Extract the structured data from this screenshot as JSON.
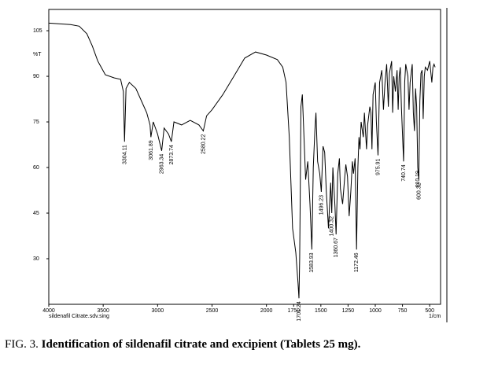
{
  "chart_data": {
    "type": "line",
    "caption_prefix": "FIG. 3.",
    "caption": "Identification of sildenafil citrate and excipient (Tablets 25 mg).",
    "sample_label": "sildenafil Citrate.sdv.sing",
    "xlabel": "1/cm",
    "ylabel": "%T",
    "xlim": [
      4000,
      400
    ],
    "ylim": [
      15,
      112
    ],
    "xticks": [
      4000,
      3500,
      3000,
      2500,
      2000,
      1750,
      1500,
      1250,
      1000,
      750,
      500
    ],
    "yticks": [
      30,
      45,
      60,
      75,
      90,
      105
    ],
    "grid": false,
    "series": [
      {
        "color": "#000000",
        "x": [
          4000,
          3800,
          3720,
          3650,
          3600,
          3550,
          3480,
          3400,
          3340,
          3315,
          3304,
          3290,
          3260,
          3200,
          3150,
          3100,
          3070,
          3062,
          3040,
          3000,
          2963,
          2940,
          2900,
          2874,
          2850,
          2780,
          2700,
          2620,
          2580,
          2550,
          2500,
          2400,
          2300,
          2200,
          2100,
          2000,
          1900,
          1850,
          1820,
          1790,
          1760,
          1730,
          1710,
          1701,
          1695,
          1690,
          1683,
          1670,
          1655,
          1640,
          1620,
          1600,
          1583,
          1570,
          1555,
          1545,
          1530,
          1510,
          1496,
          1480,
          1465,
          1450,
          1430,
          1410,
          1400,
          1390,
          1370,
          1360,
          1345,
          1330,
          1320,
          1300,
          1285,
          1270,
          1255,
          1240,
          1225,
          1210,
          1200,
          1185,
          1172,
          1160,
          1150,
          1140,
          1130,
          1110,
          1100,
          1080,
          1070,
          1050,
          1040,
          1030,
          1020,
          1000,
          990,
          975,
          960,
          940,
          925,
          910,
          895,
          880,
          870,
          850,
          840,
          830,
          815,
          800,
          790,
          780,
          770,
          760,
          740,
          730,
          720,
          700,
          690,
          680,
          660,
          650,
          640,
          630,
          620,
          610,
          600,
          590,
          580,
          570,
          560,
          550,
          540,
          520,
          500,
          480,
          470,
          460,
          450
        ],
        "values": [
          107.5,
          107,
          106.5,
          104,
          100,
          95,
          90.5,
          89.5,
          89,
          85,
          68.5,
          86,
          88,
          86,
          82,
          78,
          74,
          70,
          75,
          71,
          65.5,
          73,
          71,
          68.5,
          75,
          74,
          75.5,
          74,
          72,
          77,
          79,
          84,
          90,
          96,
          98,
          97,
          95.5,
          93,
          88,
          70,
          40,
          32,
          22,
          17,
          30,
          50,
          80,
          84,
          70,
          56,
          62,
          48,
          33,
          60,
          72,
          78,
          62,
          58,
          52,
          67,
          65,
          52,
          40,
          55,
          45,
          60,
          47,
          38,
          58,
          63,
          53,
          48,
          55,
          61,
          57,
          44,
          52,
          62,
          58,
          63,
          33,
          60,
          70,
          66,
          75,
          70,
          78,
          66,
          74,
          80,
          78,
          66,
          84,
          88,
          75,
          64,
          88,
          92,
          79,
          88,
          94,
          80,
          91,
          95,
          78,
          90,
          85,
          92,
          79,
          90,
          93,
          80,
          62,
          88,
          94,
          90,
          79,
          88,
          94,
          78,
          72,
          86,
          80,
          60,
          56,
          82,
          91,
          92,
          76,
          90,
          93,
          92,
          95,
          88,
          93,
          94,
          93
        ]
      }
    ],
    "peaks": [
      {
        "x": 3304.11,
        "y": 68.5
      },
      {
        "x": 3061.89,
        "y": 70
      },
      {
        "x": 2963.34,
        "y": 65.5
      },
      {
        "x": 2873.74,
        "y": 68.5
      },
      {
        "x": 2580.22,
        "y": 72
      },
      {
        "x": 1701.24,
        "y": 17
      },
      {
        "x": 1583.93,
        "y": 33
      },
      {
        "x": 1496.23,
        "y": 52
      },
      {
        "x": 1400.32,
        "y": 45
      },
      {
        "x": 1360.67,
        "y": 38
      },
      {
        "x": 1172.46,
        "y": 33
      },
      {
        "x": 975.91,
        "y": 64
      },
      {
        "x": 740.74,
        "y": 62
      },
      {
        "x": 610.19,
        "y": 60
      },
      {
        "x": 600.32,
        "y": 56
      }
    ]
  }
}
